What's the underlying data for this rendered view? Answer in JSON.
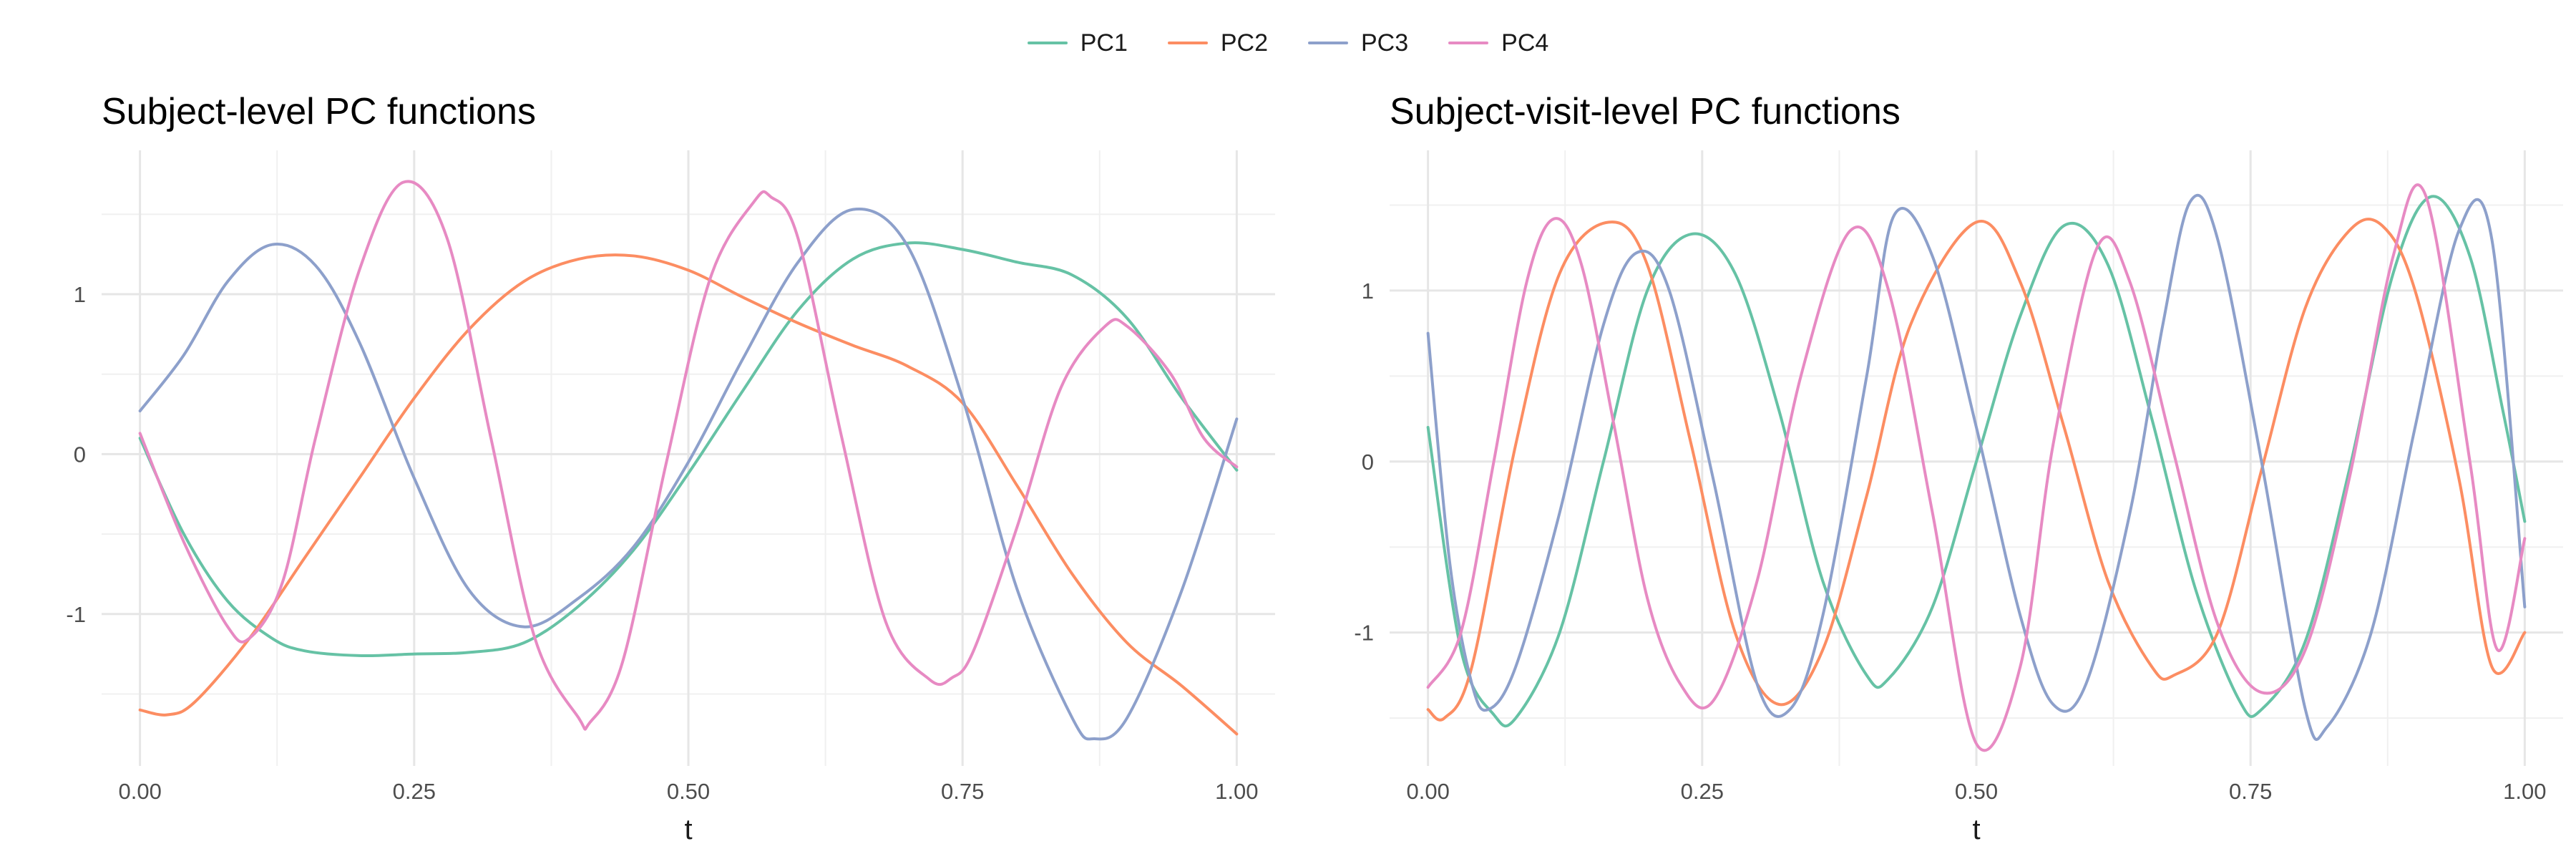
{
  "legend": [
    {
      "name": "PC1",
      "color": "#66C2A5"
    },
    {
      "name": "PC2",
      "color": "#FC8D62"
    },
    {
      "name": "PC3",
      "color": "#8DA0CB"
    },
    {
      "name": "PC4",
      "color": "#E78AC3"
    }
  ],
  "chart_data": [
    {
      "type": "line",
      "title": "Subject-level PC functions",
      "xlabel": "t",
      "ylabel": "",
      "xlim": [
        -0.035,
        1.035
      ],
      "ylim": [
        -1.95,
        1.9
      ],
      "xticks": [
        0,
        0.25,
        0.5,
        0.75,
        1
      ],
      "xtick_labels": [
        "0.00",
        "0.25",
        "0.50",
        "0.75",
        "1.00"
      ],
      "yticks": [
        -1,
        0,
        1
      ],
      "ytick_labels": [
        "-1",
        "0",
        "1"
      ],
      "grid": true,
      "legend_position": "top",
      "series": [
        {
          "name": "PC1",
          "color": "#66C2A5",
          "x": [
            0,
            0.04,
            0.08,
            0.12,
            0.15,
            0.2,
            0.25,
            0.3,
            0.35,
            0.4,
            0.45,
            0.5,
            0.55,
            0.6,
            0.65,
            0.7,
            0.75,
            0.8,
            0.85,
            0.9,
            0.95,
            1
          ],
          "y": [
            0.1,
            -0.5,
            -0.92,
            -1.15,
            -1.23,
            -1.26,
            -1.25,
            -1.24,
            -1.18,
            -0.95,
            -0.6,
            -0.12,
            0.4,
            0.9,
            1.22,
            1.32,
            1.28,
            1.2,
            1.12,
            0.85,
            0.35,
            -0.1
          ]
        },
        {
          "name": "PC2",
          "color": "#FC8D62",
          "x": [
            0,
            0.025,
            0.05,
            0.1,
            0.15,
            0.2,
            0.25,
            0.3,
            0.35,
            0.4,
            0.45,
            0.5,
            0.55,
            0.6,
            0.65,
            0.7,
            0.75,
            0.8,
            0.85,
            0.9,
            0.95,
            1
          ],
          "y": [
            -1.6,
            -1.63,
            -1.55,
            -1.15,
            -0.65,
            -0.15,
            0.35,
            0.78,
            1.08,
            1.22,
            1.24,
            1.15,
            0.98,
            0.82,
            0.68,
            0.55,
            0.32,
            -0.2,
            -0.75,
            -1.18,
            -1.45,
            -1.75
          ]
        },
        {
          "name": "PC3",
          "color": "#8DA0CB",
          "x": [
            0,
            0.04,
            0.08,
            0.12,
            0.16,
            0.2,
            0.25,
            0.3,
            0.35,
            0.4,
            0.45,
            0.5,
            0.55,
            0.6,
            0.65,
            0.7,
            0.75,
            0.8,
            0.85,
            0.87,
            0.9,
            0.95,
            1
          ],
          "y": [
            0.27,
            0.62,
            1.08,
            1.31,
            1.18,
            0.7,
            -0.15,
            -0.85,
            -1.08,
            -0.9,
            -0.58,
            -0.05,
            0.6,
            1.2,
            1.53,
            1.3,
            0.35,
            -0.85,
            -1.65,
            -1.78,
            -1.65,
            -0.85,
            0.22
          ]
        },
        {
          "name": "PC4",
          "color": "#E78AC3",
          "x": [
            0,
            0.04,
            0.08,
            0.1,
            0.13,
            0.16,
            0.2,
            0.24,
            0.28,
            0.32,
            0.36,
            0.4,
            0.41,
            0.44,
            0.48,
            0.52,
            0.56,
            0.575,
            0.6,
            0.64,
            0.68,
            0.72,
            0.74,
            0.76,
            0.8,
            0.84,
            0.88,
            0.9,
            0.94,
            0.97,
            1
          ],
          "y": [
            0.13,
            -0.55,
            -1.08,
            -1.15,
            -0.8,
            0.1,
            1.15,
            1.7,
            1.35,
            0.1,
            -1.15,
            -1.65,
            -1.68,
            -1.3,
            -0.05,
            1.1,
            1.58,
            1.61,
            1.35,
            0.1,
            -1.05,
            -1.41,
            -1.4,
            -1.23,
            -0.45,
            0.42,
            0.8,
            0.8,
            0.5,
            0.1,
            -0.08
          ]
        }
      ]
    },
    {
      "type": "line",
      "title": "Subject-visit-level PC functions",
      "xlabel": "t",
      "ylabel": "",
      "xlim": [
        -0.035,
        1.035
      ],
      "ylim": [
        -1.78,
        1.82
      ],
      "xticks": [
        0,
        0.25,
        0.5,
        0.75,
        1
      ],
      "xtick_labels": [
        "0.00",
        "0.25",
        "0.50",
        "0.75",
        "1.00"
      ],
      "yticks": [
        -1,
        0,
        1
      ],
      "ytick_labels": [
        "-1",
        "0",
        "1"
      ],
      "grid": true,
      "legend_position": "top",
      "series": [
        {
          "name": "PC1",
          "color": "#66C2A5",
          "x": [
            0,
            0.03,
            0.06,
            0.08,
            0.12,
            0.16,
            0.2,
            0.24,
            0.28,
            0.32,
            0.36,
            0.4,
            0.42,
            0.46,
            0.5,
            0.54,
            0.58,
            0.62,
            0.66,
            0.7,
            0.74,
            0.76,
            0.8,
            0.84,
            0.88,
            0.915,
            0.95,
            0.98,
            1
          ],
          "y": [
            0.2,
            -1.1,
            -1.48,
            -1.5,
            -1.0,
            0.0,
            1.0,
            1.33,
            1.1,
            0.3,
            -0.7,
            -1.25,
            -1.27,
            -0.85,
            0.0,
            0.85,
            1.38,
            1.15,
            0.25,
            -0.75,
            -1.4,
            -1.45,
            -1.05,
            -0.05,
            1.1,
            1.55,
            1.2,
            0.3,
            -0.35
          ]
        },
        {
          "name": "PC2",
          "color": "#FC8D62",
          "x": [
            0,
            0.015,
            0.04,
            0.08,
            0.12,
            0.165,
            0.2,
            0.24,
            0.28,
            0.32,
            0.36,
            0.4,
            0.44,
            0.5,
            0.54,
            0.58,
            0.62,
            0.66,
            0.68,
            0.72,
            0.76,
            0.8,
            0.84,
            0.87,
            0.9,
            0.94,
            0.97,
            1
          ],
          "y": [
            -1.45,
            -1.5,
            -1.2,
            0.1,
            1.1,
            1.4,
            1.15,
            0.1,
            -1.0,
            -1.42,
            -1.1,
            -0.2,
            0.8,
            1.4,
            1.05,
            0.2,
            -0.7,
            -1.2,
            -1.25,
            -1.0,
            -0.05,
            0.9,
            1.35,
            1.38,
            1.0,
            -0.1,
            -1.2,
            -1.0
          ]
        },
        {
          "name": "PC3",
          "color": "#8DA0CB",
          "x": [
            0,
            0.02,
            0.04,
            0.055,
            0.08,
            0.12,
            0.16,
            0.19,
            0.22,
            0.26,
            0.3,
            0.33,
            0.36,
            0.4,
            0.425,
            0.46,
            0.5,
            0.54,
            0.57,
            0.6,
            0.64,
            0.67,
            0.695,
            0.72,
            0.76,
            0.8,
            0.82,
            0.86,
            0.9,
            0.94,
            0.97,
            1
          ],
          "y": [
            0.75,
            -0.6,
            -1.3,
            -1.45,
            -1.2,
            -0.3,
            0.8,
            1.22,
            1.0,
            -0.1,
            -1.3,
            -1.45,
            -0.9,
            0.5,
            1.44,
            1.2,
            0.2,
            -0.9,
            -1.42,
            -1.3,
            -0.3,
            0.8,
            1.52,
            1.3,
            0.0,
            -1.45,
            -1.55,
            -1.0,
            0.2,
            1.35,
            1.3,
            -0.85
          ]
        },
        {
          "name": "PC4",
          "color": "#E78AC3",
          "x": [
            0,
            0.03,
            0.06,
            0.09,
            0.115,
            0.14,
            0.17,
            0.2,
            0.23,
            0.26,
            0.3,
            0.34,
            0.385,
            0.42,
            0.46,
            0.5,
            0.54,
            0.57,
            0.61,
            0.64,
            0.68,
            0.72,
            0.76,
            0.8,
            0.84,
            0.88,
            0.91,
            0.95,
            0.975,
            1
          ],
          "y": [
            -1.32,
            -1.0,
            0.0,
            1.05,
            1.42,
            1.15,
            0.2,
            -0.8,
            -1.3,
            -1.4,
            -0.7,
            0.5,
            1.35,
            1.0,
            -0.3,
            -1.65,
            -1.2,
            0.1,
            1.25,
            1.05,
            0.05,
            -0.95,
            -1.35,
            -1.1,
            -0.1,
            1.2,
            1.55,
            0.0,
            -1.1,
            -0.45
          ]
        }
      ]
    }
  ]
}
